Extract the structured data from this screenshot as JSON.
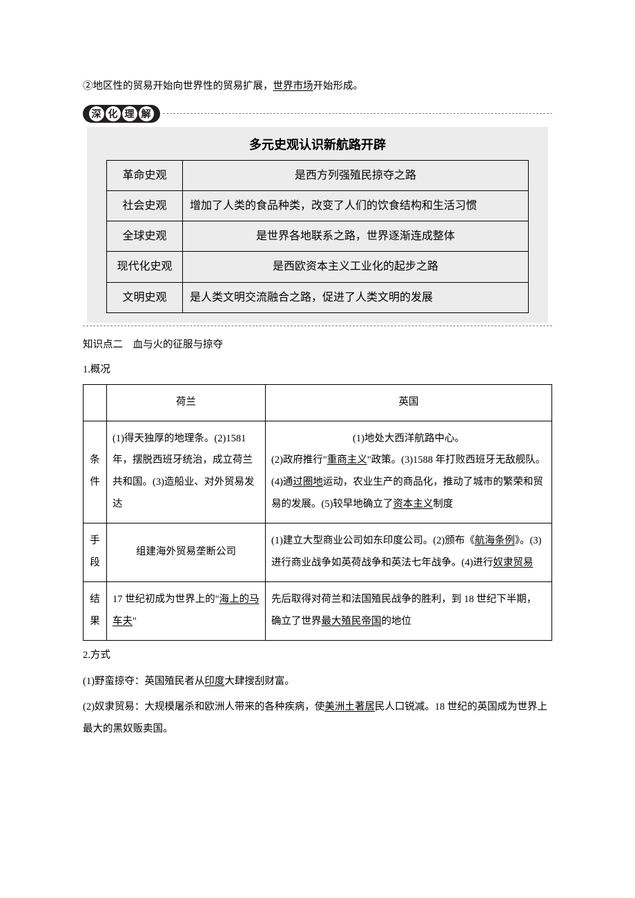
{
  "top_sentence_pre": "②地区性的贸易开始向世界性的贸易扩展，",
  "top_sentence_ul": "世界市场",
  "top_sentence_post": "开始形成。",
  "deepen": {
    "pill_chars": [
      "深",
      "化",
      "理",
      "解"
    ],
    "title": "多元史观认识新航路开辟",
    "rows": [
      {
        "label": "革命史观",
        "text": "是西方列强殖民掠夺之路",
        "single": true
      },
      {
        "label": "社会史观",
        "text": "增加了人类的食品种类，改变了人们的饮食结构和生活习惯",
        "single": false
      },
      {
        "label": "全球史观",
        "text": "是世界各地联系之路，世界逐渐连成整体",
        "single": true
      },
      {
        "label": "现代化史观",
        "text": "是西欧资本主义工业化的起步之路",
        "single": true
      },
      {
        "label": "文明史观",
        "text": "是人类文明交流融合之路，促进了人类文明的发展",
        "single": false
      }
    ]
  },
  "section2": {
    "heading": "知识点二　血与火的征服与掠夺",
    "sub1": "1.概况",
    "table": {
      "headers": [
        "",
        "荷兰",
        "英国"
      ],
      "rows": [
        {
          "label": "条件",
          "nl": "(1)得天独厚的地理条。(2)1581年，摆脱西班牙统治，成立荷兰共和国。(3)造船业、对外贸易发达",
          "uk_parts": [
            {
              "type": "center",
              "segs": [
                {
                  "t": "(1)地处大西洋航路中心。"
                }
              ]
            },
            {
              "type": "line",
              "segs": [
                {
                  "t": "(2)政府推行\""
                },
                {
                  "t": "重商主义",
                  "u": true
                },
                {
                  "t": "\"政策。(3)1588 年打败西班牙无敌舰队。(4)通"
                },
                {
                  "t": "过圈地",
                  "u": true
                },
                {
                  "t": "运动，农业生产的商品化，推动了城市的繁荣和贸易的发展。(5)较早地确立了"
                },
                {
                  "t": "资本主义",
                  "u": true
                },
                {
                  "t": "制度"
                }
              ]
            }
          ]
        },
        {
          "label": "手段",
          "nl_center": true,
          "nl": "组建海外贸易垄断公司",
          "uk_parts": [
            {
              "type": "line",
              "segs": [
                {
                  "t": "(1)建立大型商业公司如东印度公司。(2)颁布《"
                },
                {
                  "t": "航海条例",
                  "u": true
                },
                {
                  "t": "》。(3)进行商业战争如英荷战争和英法七年战争。(4)进行"
                },
                {
                  "t": "奴隶贸易",
                  "u": true
                }
              ]
            }
          ]
        },
        {
          "label": "结果",
          "nl_segs": [
            {
              "t": "17 世纪初成为世界上的\""
            },
            {
              "t": "海上的马车夫",
              "u": true
            },
            {
              "t": "\""
            }
          ],
          "uk_parts": [
            {
              "type": "line",
              "segs": [
                {
                  "t": "先后取得对荷兰和法国殖民战争的胜利，到 18 世纪下半期，确立了世界"
                },
                {
                  "t": "最大殖民帝国",
                  "u": true
                },
                {
                  "t": "的地位"
                }
              ]
            }
          ]
        }
      ]
    },
    "sub2": "2.方式",
    "p1_segs": [
      {
        "t": "(1)野蛮掠夺：英国殖民者从"
      },
      {
        "t": "印度",
        "u": true
      },
      {
        "t": "大肆搜刮财富。"
      }
    ],
    "p2_segs": [
      {
        "t": "(2)奴隶贸易：大规模屠杀和欧洲人带来的各种疾病，使"
      },
      {
        "t": "美洲土著居",
        "u": true
      },
      {
        "t": "民人口锐减。18 世纪的英国成为世界上最大的黑奴贩卖国。"
      }
    ]
  }
}
